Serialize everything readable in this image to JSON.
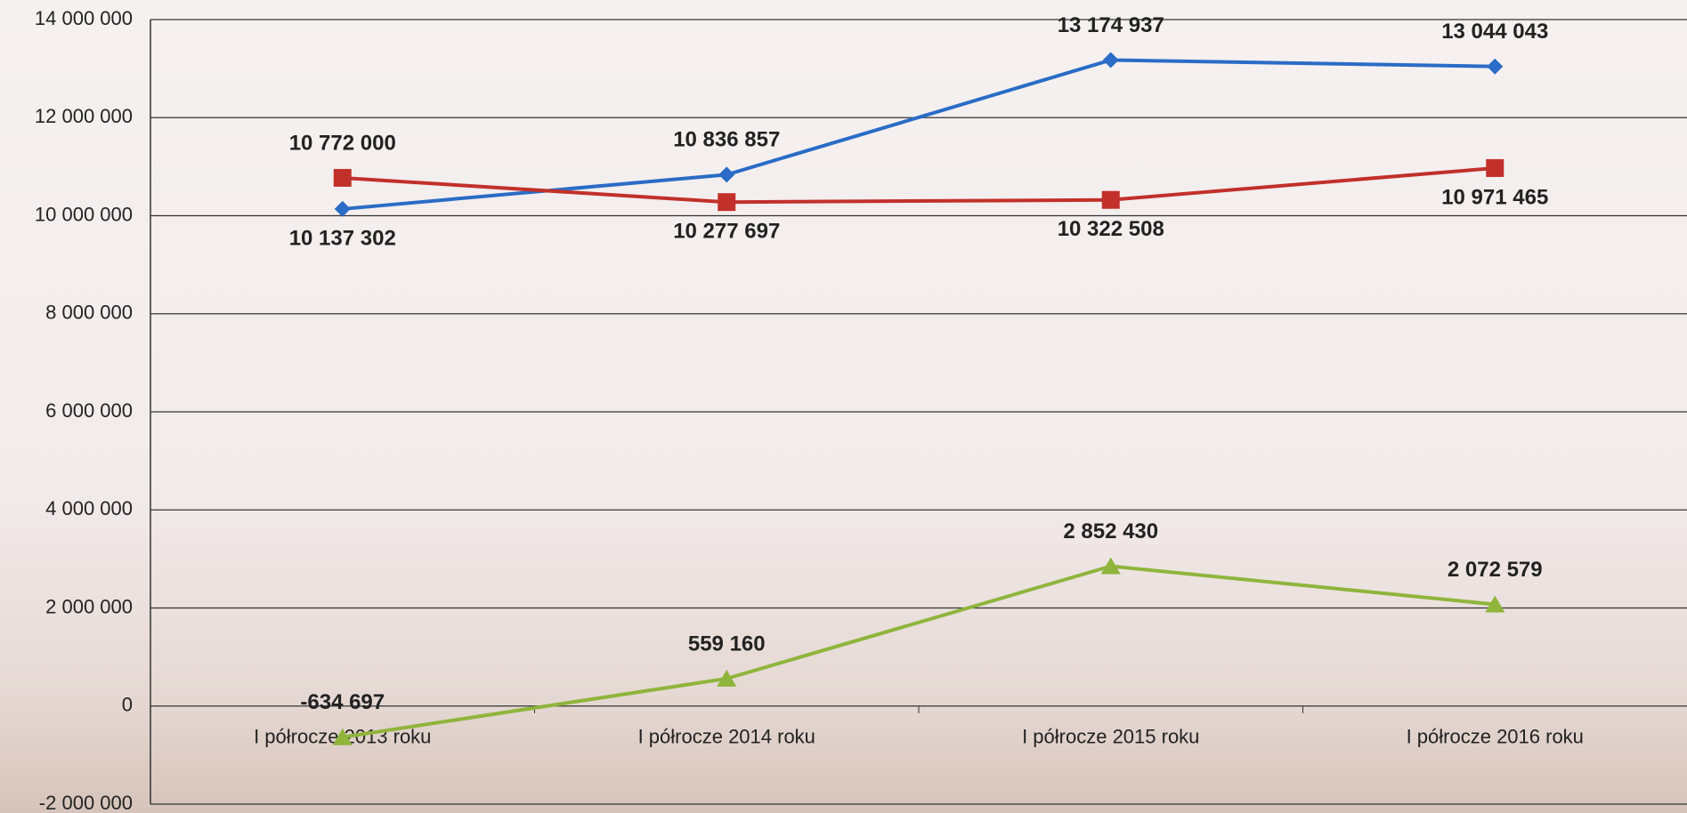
{
  "chart_data": {
    "type": "line",
    "categories": [
      "I półrocze 2013 roku",
      "I półrocze 2014 roku",
      "I półrocze 2015 roku",
      "I półrocze 2016 roku"
    ],
    "series": [
      {
        "color": "#2a6cc6",
        "marker": "diamond",
        "values": [
          10137302,
          10836857,
          13174937,
          13044043
        ],
        "value_labels": [
          "10 137 302",
          "10 836 857",
          "13 174 937",
          "13 044 043"
        ]
      },
      {
        "color": "#c2302a",
        "marker": "square",
        "values": [
          10772000,
          10277697,
          10322508,
          10971465
        ],
        "value_labels": [
          "10 772 000",
          "10 277 697",
          "10 322 508",
          "10 971 465"
        ]
      },
      {
        "color": "#8fb53c",
        "marker": "triangle",
        "values": [
          -634697,
          559160,
          2852430,
          2072579
        ],
        "value_labels": [
          "-634 697",
          "559 160",
          "2 852 430",
          "2 072 579"
        ]
      }
    ],
    "ylim": [
      -2000000,
      14000000
    ],
    "yticks": [
      {
        "value": -2000000,
        "label": "-2 000 000"
      },
      0,
      {
        "value": 2000000,
        "label": "2 000 000"
      },
      {
        "value": 4000000,
        "label": "4 000 000"
      },
      {
        "value": 6000000,
        "label": "6 000 000"
      },
      {
        "value": 8000000,
        "label": "8 000 000"
      },
      {
        "value": 10000000,
        "label": "10 000 000"
      },
      {
        "value": 12000000,
        "label": "12 000 000"
      },
      {
        "value": 14000000,
        "label": "14 000 000"
      }
    ],
    "grid": true
  }
}
